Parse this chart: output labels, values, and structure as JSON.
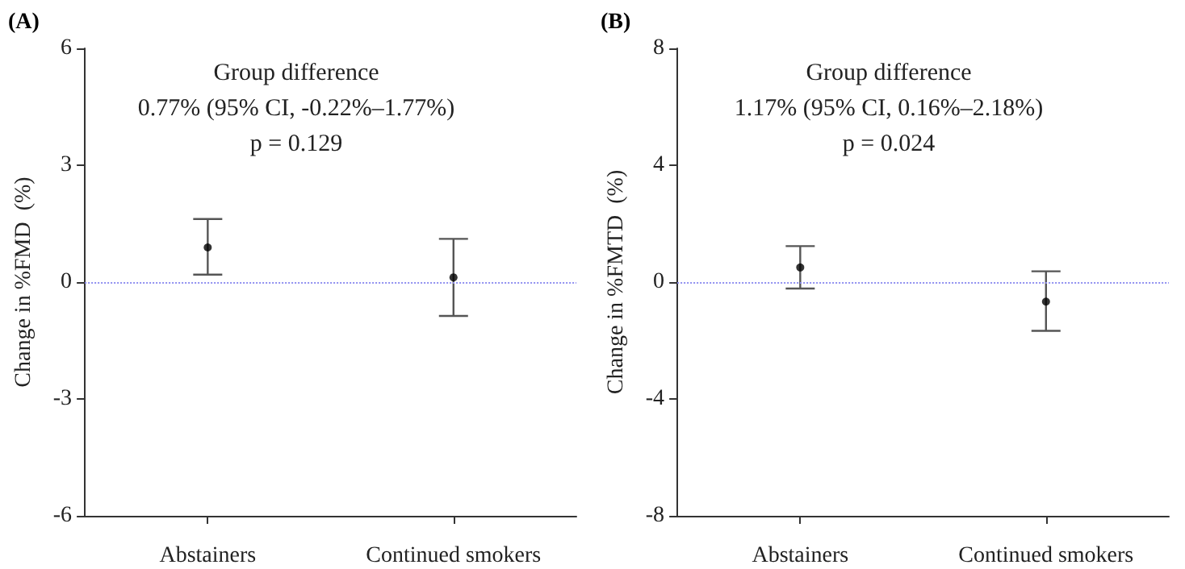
{
  "chart_data": [
    {
      "type": "scatter",
      "title": "(A)",
      "ylabel": "Change in %FMD  (%)",
      "categories": [
        "Abstainers",
        "Continued smokers"
      ],
      "series": [
        {
          "color": "#000000",
          "values": [
            0.89,
            0.12
          ],
          "errors": [
            [
              0.19,
              1.62
            ],
            [
              -0.87,
              1.11
            ]
          ]
        }
      ],
      "ylim": [
        -6,
        6
      ],
      "yticks": [
        -6,
        -3,
        0,
        3,
        6
      ],
      "marker": "circle",
      "ref_lines": [
        {
          "axis": "y",
          "value": 0,
          "color": "#8f8ff0",
          "line_style": "dotted"
        }
      ],
      "annotations": [
        "Group difference",
        "0.77% (95% CI, -0.22%–1.77%)",
        "p = 0.129"
      ]
    },
    {
      "type": "scatter",
      "title": "(B)",
      "ylabel": "Change in %FMTD  (%)",
      "categories": [
        "Abstainers",
        "Continued smokers"
      ],
      "series": [
        {
          "color": "#000000",
          "values": [
            0.5,
            -0.67
          ],
          "errors": [
            [
              -0.22,
              1.23
            ],
            [
              -1.67,
              0.37
            ]
          ]
        }
      ],
      "ylim": [
        -8,
        8
      ],
      "yticks": [
        -8,
        -4,
        0,
        4,
        8
      ],
      "marker": "circle",
      "ref_lines": [
        {
          "axis": "y",
          "value": 0,
          "color": "#8f8ff0",
          "line_style": "dotted"
        }
      ],
      "annotations": [
        "Group difference",
        "1.17% (95% CI, 0.16%–2.18%)",
        "p = 0.024"
      ]
    }
  ]
}
